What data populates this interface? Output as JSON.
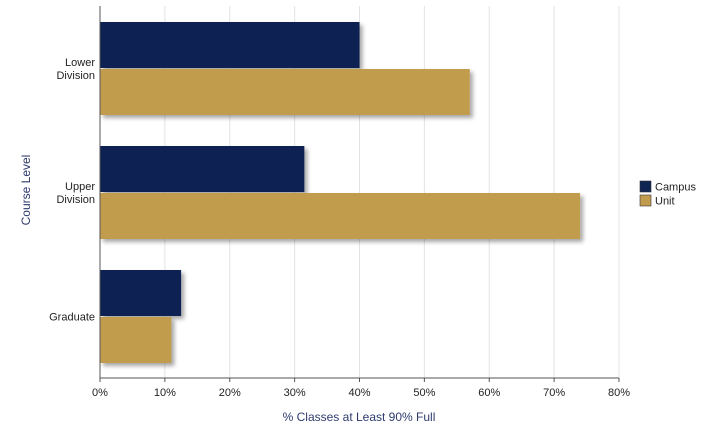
{
  "chart_data": {
    "type": "bar",
    "orientation": "horizontal",
    "categories": [
      [
        "Lower",
        "Division"
      ],
      [
        "Upper",
        "Division"
      ],
      [
        "Graduate"
      ]
    ],
    "series": [
      {
        "name": "Campus",
        "color": "#0e2452",
        "values": [
          40,
          31.5,
          12.5
        ]
      },
      {
        "name": "Unit",
        "color": "#c29c4e",
        "values": [
          57,
          74,
          11
        ]
      }
    ],
    "xlabel": "% Classes at Least 90% Full",
    "ylabel": "Course Level",
    "xlim": [
      0,
      80
    ],
    "xticks": [
      0,
      10,
      20,
      30,
      40,
      50,
      60,
      70,
      80
    ],
    "tick_suffix": "%",
    "grid": true,
    "legend_position": "right"
  }
}
